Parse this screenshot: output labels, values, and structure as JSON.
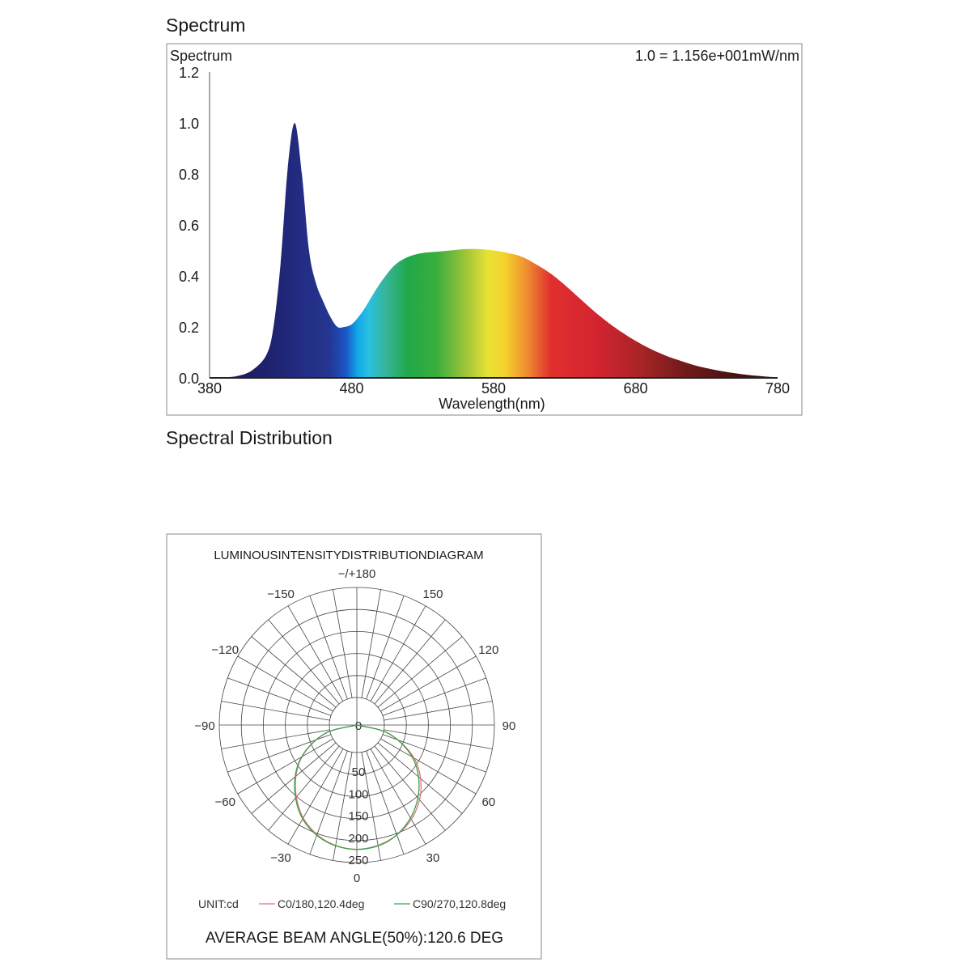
{
  "headings": {
    "spectrum": "Spectrum",
    "distribution": "Spectral Distribution"
  },
  "chart_data": [
    {
      "type": "area",
      "title": "Spectrum",
      "scale_note": "1.0 = 1.156e+001mW/nm",
      "xlabel": "Wavelength(nm)",
      "ylabel": "",
      "xlim": [
        380,
        780
      ],
      "ylim": [
        0,
        1.2
      ],
      "x_ticks": [
        "380",
        "480",
        "580",
        "680",
        "780"
      ],
      "y_ticks": [
        "0.0",
        "0.2",
        "0.4",
        "0.6",
        "0.8",
        "1.0",
        "1.2"
      ],
      "x": [
        380,
        390,
        400,
        410,
        420,
        425,
        430,
        435,
        440,
        445,
        450,
        455,
        460,
        465,
        470,
        475,
        480,
        485,
        490,
        500,
        510,
        520,
        530,
        540,
        550,
        560,
        570,
        580,
        590,
        600,
        610,
        620,
        630,
        640,
        650,
        660,
        670,
        680,
        690,
        700,
        710,
        720,
        730,
        740,
        750,
        760,
        770,
        780
      ],
      "values": [
        0.0,
        0.002,
        0.008,
        0.03,
        0.09,
        0.2,
        0.45,
        0.82,
        1.0,
        0.8,
        0.5,
        0.37,
        0.3,
        0.24,
        0.2,
        0.2,
        0.21,
        0.24,
        0.28,
        0.37,
        0.44,
        0.475,
        0.49,
        0.495,
        0.5,
        0.505,
        0.505,
        0.5,
        0.49,
        0.475,
        0.445,
        0.41,
        0.365,
        0.315,
        0.265,
        0.22,
        0.18,
        0.145,
        0.115,
        0.09,
        0.07,
        0.052,
        0.038,
        0.027,
        0.018,
        0.011,
        0.006,
        0.002
      ],
      "grid": false
    },
    {
      "type": "polar",
      "title": "LUMINOUSINTENSITYDISTRIBUTIONDIAGRAM",
      "angle_labels": [
        {
          "angle": 0,
          "text": "0"
        },
        {
          "angle": 30,
          "text": "30"
        },
        {
          "angle": 60,
          "text": "60"
        },
        {
          "angle": 90,
          "text": "90"
        },
        {
          "angle": 120,
          "text": "120"
        },
        {
          "angle": 150,
          "text": "150"
        },
        {
          "angle": 180,
          "text": "−/+180"
        },
        {
          "angle": -150,
          "text": "−150"
        },
        {
          "angle": -120,
          "text": "−120"
        },
        {
          "angle": -90,
          "text": "−90"
        },
        {
          "angle": -60,
          "text": "−60"
        },
        {
          "angle": -30,
          "text": "−30"
        }
      ],
      "radial_max": 250,
      "radial_ticks": [
        0,
        50,
        100,
        150,
        200,
        250
      ],
      "unit_label": "UNIT:cd",
      "series": [
        {
          "name": "C0/180,120.4deg",
          "color": "#e0707a",
          "angles": [
            -90,
            -75,
            -60,
            -45,
            -30,
            -15,
            0,
            15,
            30,
            45,
            60,
            75,
            90
          ],
          "values": [
            0,
            60,
            115,
            158,
            195,
            218,
            226,
            218,
            198,
            165,
            120,
            60,
            0
          ]
        },
        {
          "name": "C90/270,120.8deg",
          "color": "#3aa04a",
          "angles": [
            -90,
            -75,
            -60,
            -45,
            -30,
            -15,
            0,
            15,
            30,
            45,
            60,
            75,
            90
          ],
          "values": [
            0,
            60,
            116,
            160,
            197,
            219,
            226,
            219,
            195,
            160,
            116,
            60,
            0
          ]
        }
      ],
      "average_beam_angle": "AVERAGE BEAM ANGLE(50%):120.6 DEG"
    }
  ]
}
